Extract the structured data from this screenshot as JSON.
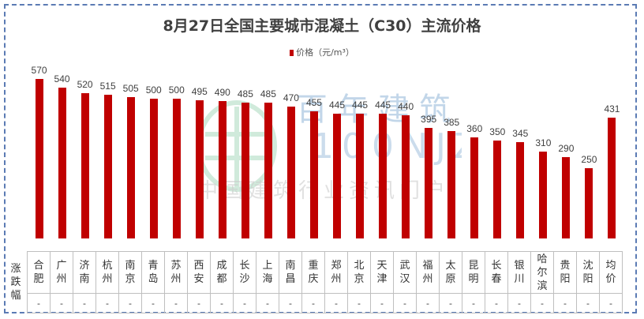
{
  "title": "8月27日全国主要城市混凝土（C30）主流价格",
  "legend": {
    "label": "价格（元/m³）",
    "color": "#c00000"
  },
  "watermark": {
    "brand": "百年建筑",
    "code": "100NJZ",
    "slogan": "中国建筑行业资讯门户"
  },
  "table": {
    "row_label": "涨跌幅",
    "change_values": [
      "-",
      "-",
      "-",
      "-",
      "-",
      "-",
      "-",
      "-",
      "-",
      "-",
      "-",
      "-",
      "-",
      "-",
      "-",
      "-",
      "-",
      "-",
      "-",
      "-",
      "-",
      "-",
      "-",
      "-",
      "-",
      "-"
    ]
  },
  "chart_data": {
    "type": "bar",
    "title": "8月27日全国主要城市混凝土（C30）主流价格",
    "xlabel": "",
    "ylabel": "价格（元/m³）",
    "legend": [
      "价格（元/m³）"
    ],
    "legend_position": "top",
    "grid": false,
    "ylim": [
      0,
      600
    ],
    "categories": [
      "合肥",
      "广州",
      "济南",
      "杭州",
      "南京",
      "青岛",
      "苏州",
      "西安",
      "成都",
      "长沙",
      "上海",
      "南昌",
      "重庆",
      "郑州",
      "北京",
      "天津",
      "武汉",
      "福州",
      "太原",
      "昆明",
      "长春",
      "银川",
      "哈尔滨",
      "贵阳",
      "沈阳",
      "均价"
    ],
    "series": [
      {
        "name": "价格（元/m³）",
        "color": "#c00000",
        "values": [
          570,
          540,
          520,
          515,
          505,
          500,
          500,
          495,
          490,
          485,
          485,
          470,
          455,
          445,
          445,
          445,
          440,
          395,
          385,
          360,
          350,
          345,
          310,
          290,
          250,
          431
        ]
      }
    ],
    "change_row": {
      "label": "涨跌幅",
      "values": [
        "-",
        "-",
        "-",
        "-",
        "-",
        "-",
        "-",
        "-",
        "-",
        "-",
        "-",
        "-",
        "-",
        "-",
        "-",
        "-",
        "-",
        "-",
        "-",
        "-",
        "-",
        "-",
        "-",
        "-",
        "-",
        "-"
      ]
    }
  }
}
